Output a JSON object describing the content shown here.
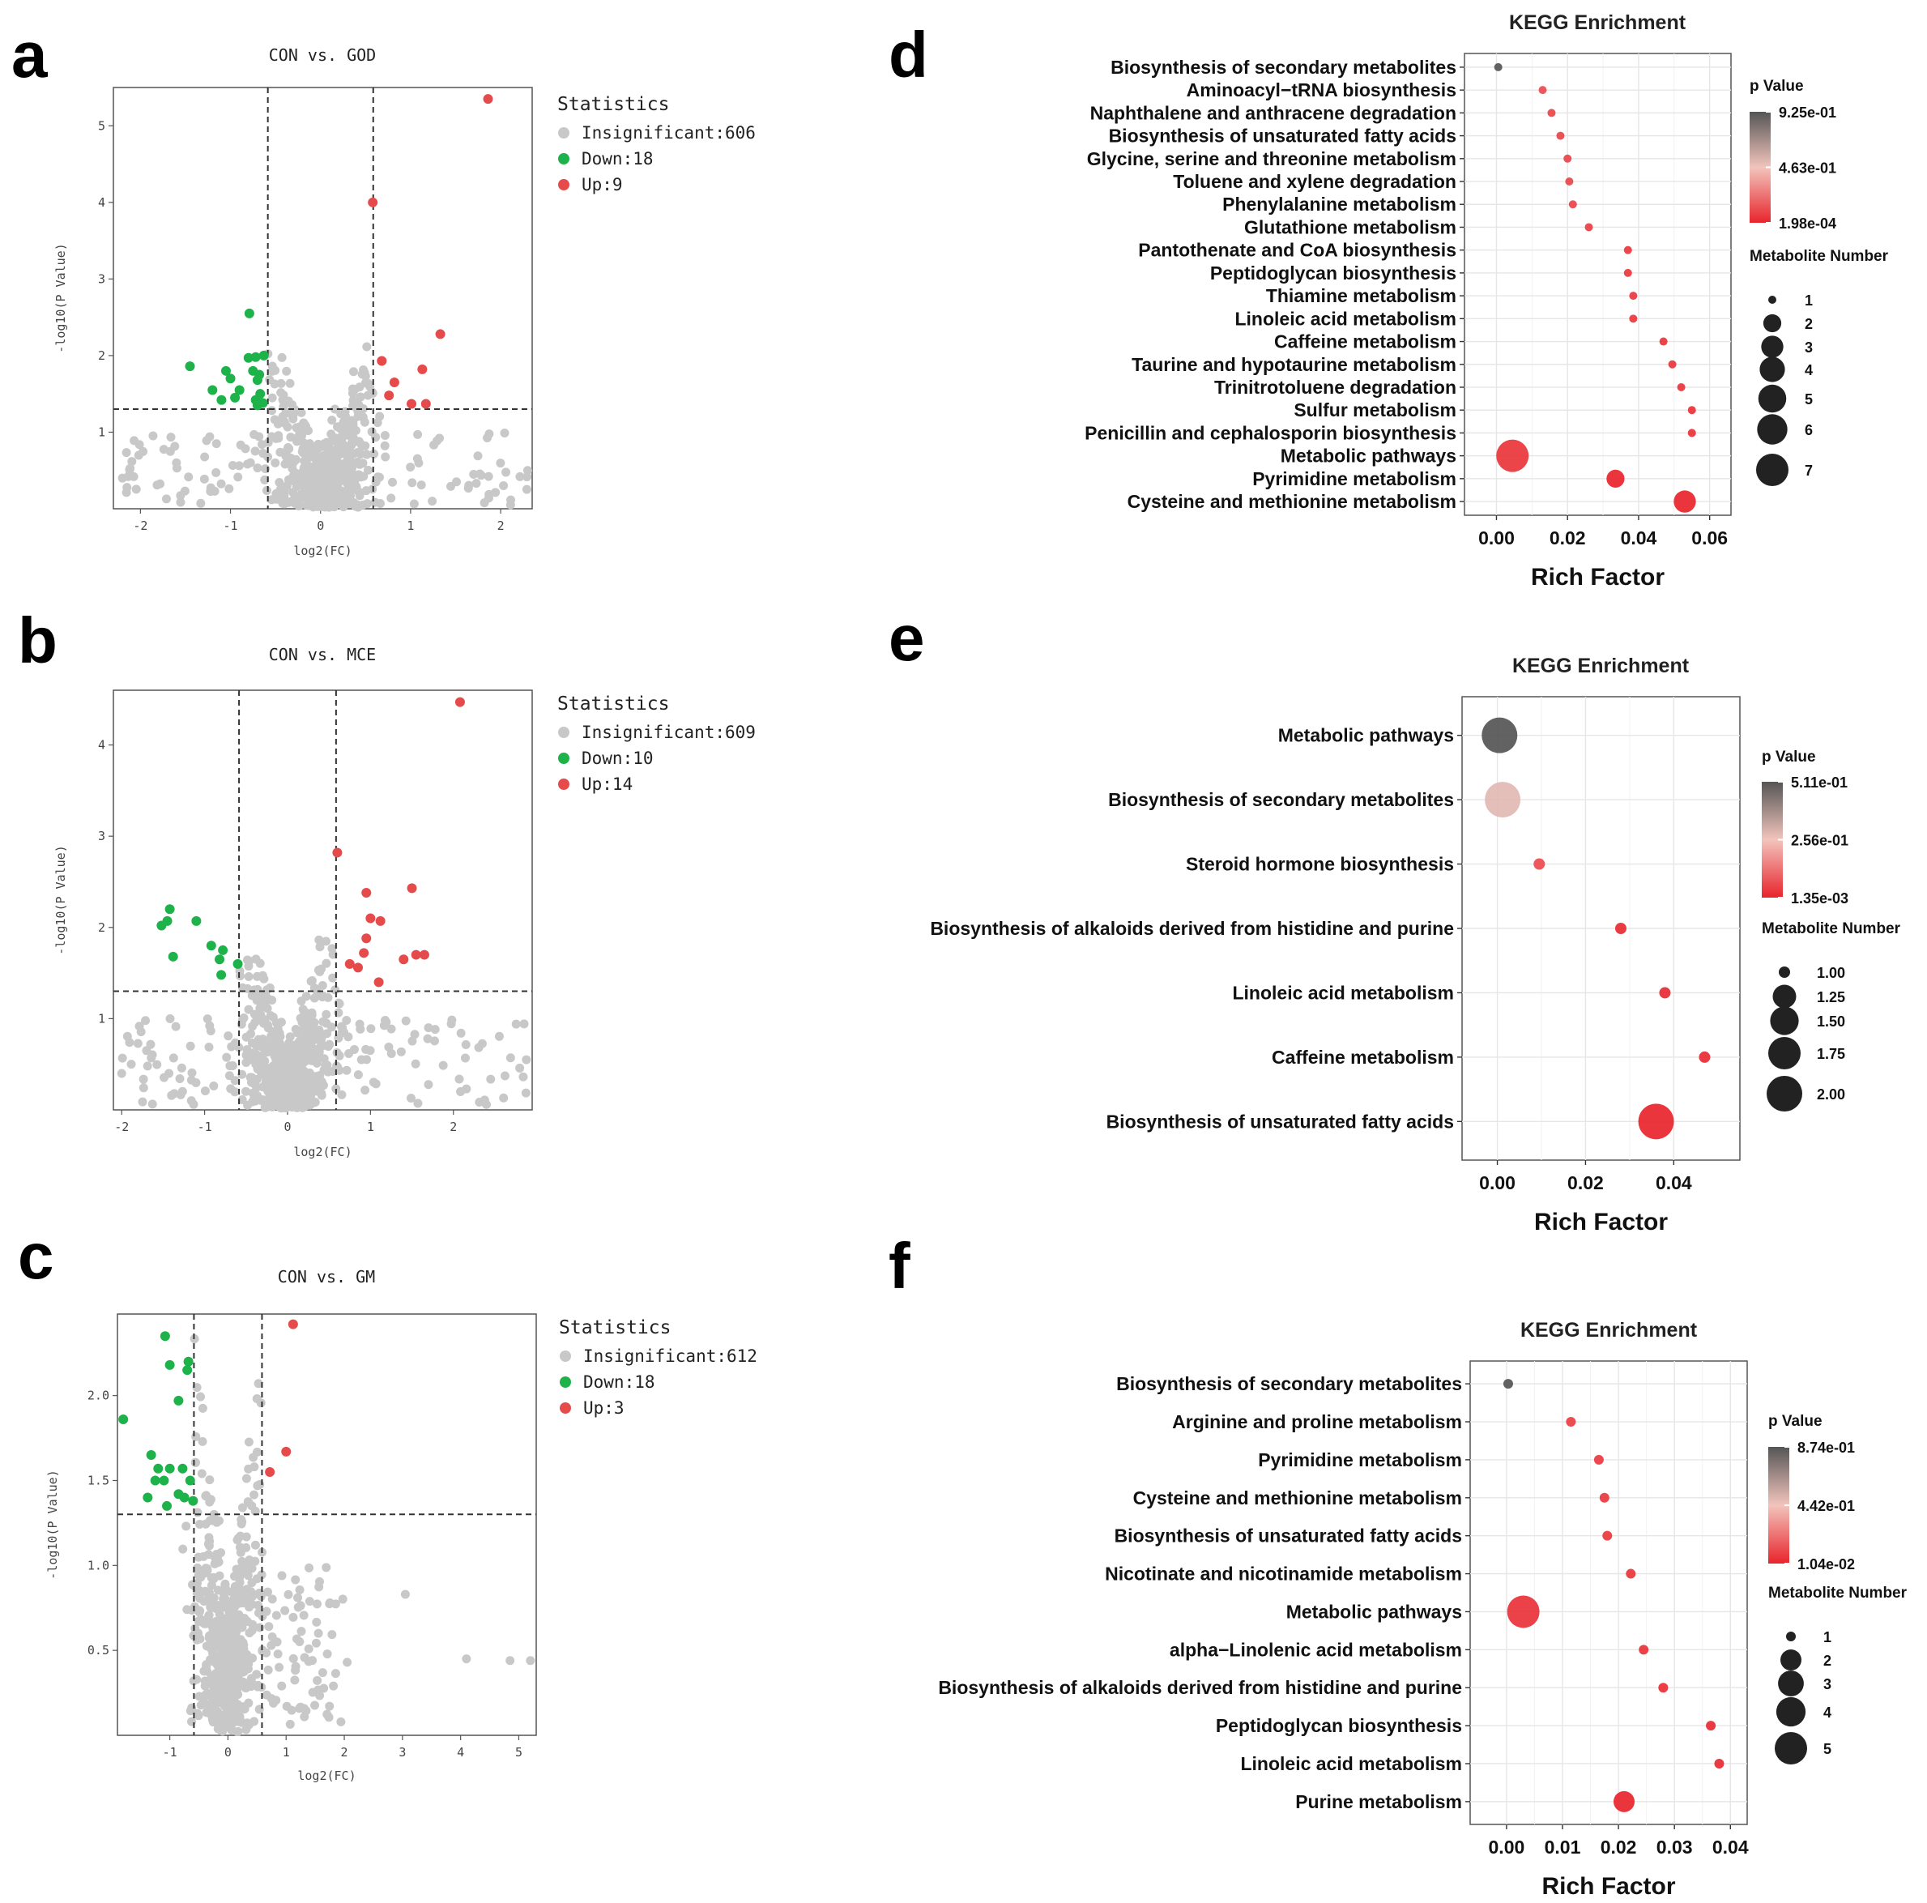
{
  "colors": {
    "insignificant": "#c8c8c8",
    "down": "#1db24a",
    "up": "#e64b4b",
    "grad_top": "#555555",
    "grad_mid": "#f2c4bc",
    "grad_bottom": "#e8242c"
  },
  "panels": [
    "a",
    "b",
    "c",
    "d",
    "e",
    "f"
  ],
  "chart_data": [
    {
      "type": "scatter",
      "panel": "a",
      "title": "CON vs. GOD",
      "xlabel": "log2(FC)",
      "ylabel": "-log10(P Value)",
      "xlim": [
        -2.3,
        2.35
      ],
      "ylim": [
        0,
        5.5
      ],
      "xticks": [
        -2,
        -1,
        0,
        1,
        2
      ],
      "yticks": [
        1,
        2,
        3,
        4,
        5
      ],
      "thresholds": {
        "x": [
          -0.585,
          0.585
        ],
        "y": 1.301
      },
      "legend_title": "Statistics",
      "legend": [
        {
          "label": "Insignificant:606",
          "key": "insignificant"
        },
        {
          "label": "Down:18",
          "key": "down"
        },
        {
          "label": "Up:9",
          "key": "up"
        }
      ],
      "up_points": [
        [
          1.86,
          5.35
        ],
        [
          0.58,
          4.0
        ],
        [
          1.33,
          2.28
        ],
        [
          0.68,
          1.93
        ],
        [
          1.13,
          1.82
        ],
        [
          0.82,
          1.65
        ],
        [
          0.76,
          1.48
        ],
        [
          1.01,
          1.37
        ],
        [
          1.17,
          1.37
        ]
      ],
      "down_points": [
        [
          -0.79,
          2.55
        ],
        [
          -1.45,
          1.86
        ],
        [
          -0.8,
          1.97
        ],
        [
          -0.63,
          2.0
        ],
        [
          -0.72,
          1.98
        ],
        [
          -1.05,
          1.8
        ],
        [
          -0.75,
          1.8
        ],
        [
          -0.68,
          1.75
        ],
        [
          -1.0,
          1.7
        ],
        [
          -0.7,
          1.68
        ],
        [
          -1.2,
          1.55
        ],
        [
          -0.9,
          1.55
        ],
        [
          -0.67,
          1.5
        ],
        [
          -1.1,
          1.42
        ],
        [
          -0.95,
          1.45
        ],
        [
          -0.72,
          1.42
        ],
        [
          -0.64,
          1.38
        ],
        [
          -0.7,
          1.35
        ]
      ],
      "insignificant_count": 606,
      "insignificant_spread": {
        "x": [
          -2.2,
          2.3
        ],
        "ymax": 2.1,
        "outliers": [
          [
            -2.2,
            0.4
          ],
          [
            2.3,
            0.5
          ],
          [
            -1.6,
            0.6
          ],
          [
            1.7,
            0.45
          ]
        ]
      }
    },
    {
      "type": "scatter",
      "panel": "b",
      "title": "CON vs. MCE",
      "xlabel": "log2(FC)",
      "ylabel": "-log10(P Value)",
      "xlim": [
        -2.1,
        2.95
      ],
      "ylim": [
        0,
        4.6
      ],
      "xticks": [
        -2,
        -1,
        0,
        1,
        2
      ],
      "yticks": [
        1,
        2,
        3,
        4
      ],
      "thresholds": {
        "x": [
          -0.585,
          0.585
        ],
        "y": 1.301
      },
      "legend_title": "Statistics",
      "legend": [
        {
          "label": "Insignificant:609",
          "key": "insignificant"
        },
        {
          "label": "Down:10",
          "key": "down"
        },
        {
          "label": "Up:14",
          "key": "up"
        }
      ],
      "up_points": [
        [
          2.08,
          4.47
        ],
        [
          0.6,
          2.82
        ],
        [
          0.95,
          2.38
        ],
        [
          1.5,
          2.43
        ],
        [
          1.0,
          2.1
        ],
        [
          1.12,
          2.07
        ],
        [
          0.95,
          1.88
        ],
        [
          0.92,
          1.72
        ],
        [
          1.55,
          1.7
        ],
        [
          1.65,
          1.7
        ],
        [
          1.4,
          1.65
        ],
        [
          0.75,
          1.6
        ],
        [
          0.85,
          1.56
        ],
        [
          1.1,
          1.4
        ]
      ],
      "down_points": [
        [
          -1.42,
          2.2
        ],
        [
          -1.45,
          2.07
        ],
        [
          -1.52,
          2.02
        ],
        [
          -1.1,
          2.07
        ],
        [
          -0.92,
          1.8
        ],
        [
          -0.78,
          1.75
        ],
        [
          -1.38,
          1.68
        ],
        [
          -0.82,
          1.65
        ],
        [
          -0.6,
          1.6
        ],
        [
          -0.8,
          1.48
        ]
      ],
      "insignificant_count": 609,
      "insignificant_spread": {
        "x": [
          -2.0,
          2.9
        ],
        "ymax": 1.95,
        "outliers": [
          [
            -2.0,
            0.4
          ],
          [
            2.88,
            0.55
          ],
          [
            1.7,
            0.9
          ],
          [
            -1.7,
            0.65
          ]
        ]
      }
    },
    {
      "type": "scatter",
      "panel": "c",
      "title": "CON vs. GM",
      "xlabel": "log2(FC)",
      "ylabel": "-log10(P Value)",
      "xlim": [
        -1.9,
        5.3
      ],
      "ylim": [
        0,
        2.48
      ],
      "xticks": [
        -1,
        0,
        1,
        2,
        3,
        4,
        5
      ],
      "yticks": [
        0.5,
        1.0,
        1.5,
        2.0
      ],
      "thresholds": {
        "x": [
          -0.585,
          0.585
        ],
        "y": 1.301
      },
      "legend_title": "Statistics",
      "legend": [
        {
          "label": "Insignificant:612",
          "key": "insignificant"
        },
        {
          "label": "Down:18",
          "key": "down"
        },
        {
          "label": "Up:3",
          "key": "up"
        }
      ],
      "up_points": [
        [
          1.12,
          2.42
        ],
        [
          1.0,
          1.67
        ],
        [
          0.72,
          1.55
        ]
      ],
      "down_points": [
        [
          -1.08,
          2.35
        ],
        [
          -1.0,
          2.18
        ],
        [
          -0.68,
          2.2
        ],
        [
          -0.7,
          2.15
        ],
        [
          -0.85,
          1.97
        ],
        [
          -1.8,
          1.86
        ],
        [
          -1.32,
          1.65
        ],
        [
          -1.2,
          1.57
        ],
        [
          -1.0,
          1.57
        ],
        [
          -0.78,
          1.57
        ],
        [
          -1.25,
          1.5
        ],
        [
          -1.1,
          1.5
        ],
        [
          -0.65,
          1.5
        ],
        [
          -0.85,
          1.42
        ],
        [
          -0.75,
          1.4
        ],
        [
          -1.38,
          1.4
        ],
        [
          -0.6,
          1.38
        ],
        [
          -1.05,
          1.35
        ]
      ],
      "insignificant_count": 612,
      "insignificant_spread": {
        "x": [
          -1.8,
          5.2
        ],
        "ymax": 2.45,
        "outliers": [
          [
            3.05,
            0.83
          ],
          [
            4.1,
            0.45
          ],
          [
            4.85,
            0.44
          ],
          [
            5.2,
            0.44
          ],
          [
            2.05,
            0.43
          ]
        ]
      }
    },
    {
      "type": "scatter",
      "subtype": "bubble",
      "panel": "d",
      "title": "KEGG Enrichment",
      "xlabel": "Rich Factor",
      "xlim": [
        -0.009,
        0.066
      ],
      "xticks": [
        "0.00",
        "0.02",
        "0.04",
        "0.06"
      ],
      "legend_color_title": "p Value",
      "legend_color_labels": [
        "9.25e-01",
        "4.63e-01",
        "1.98e-04"
      ],
      "legend_size_title": "Metabolite Number",
      "legend_size_labels": [
        "1",
        "2",
        "3",
        "4",
        "5",
        "6",
        "7"
      ],
      "size_max": 7,
      "categories": [
        "Biosynthesis of secondary metabolites",
        "Aminoacyl−tRNA biosynthesis",
        "Naphthalene and anthracene degradation",
        "Biosynthesis of unsaturated fatty acids",
        "Glycine, serine and threonine metabolism",
        "Toluene and xylene degradation",
        "Phenylalanine metabolism",
        "Glutathione metabolism",
        "Pantothenate and CoA biosynthesis",
        "Peptidoglycan biosynthesis",
        "Thiamine metabolism",
        "Linoleic acid metabolism",
        "Caffeine metabolism",
        "Taurine and hypotaurine metabolism",
        "Trinitrotoluene degradation",
        "Sulfur metabolism",
        "Penicillin and cephalosporin biosynthesis",
        "Metabolic pathways",
        "Pyrimidine metabolism",
        "Cysteine and methionine metabolism"
      ],
      "x": [
        0.0005,
        0.013,
        0.0155,
        0.018,
        0.02,
        0.0205,
        0.0215,
        0.026,
        0.037,
        0.037,
        0.0385,
        0.0385,
        0.047,
        0.0495,
        0.052,
        0.055,
        0.055,
        0.0045,
        0.0335,
        0.053
      ],
      "size": [
        1,
        1,
        1,
        1,
        1,
        1,
        1,
        1,
        1,
        1,
        1,
        1,
        1,
        1,
        1,
        1,
        1,
        7,
        2,
        3
      ],
      "color_t": [
        1.0,
        0.12,
        0.1,
        0.1,
        0.1,
        0.1,
        0.1,
        0.08,
        0.06,
        0.06,
        0.06,
        0.06,
        0.05,
        0.05,
        0.05,
        0.04,
        0.04,
        0.05,
        0.0,
        0.0
      ]
    },
    {
      "type": "scatter",
      "subtype": "bubble",
      "panel": "e",
      "title": "KEGG Enrichment",
      "xlabel": "Rich Factor",
      "xlim": [
        -0.008,
        0.055
      ],
      "xticks": [
        "0.00",
        "0.02",
        "0.04"
      ],
      "legend_color_title": "p Value",
      "legend_color_labels": [
        "5.11e-01",
        "2.56e-01",
        "1.35e-03"
      ],
      "legend_size_title": "Metabolite Number",
      "legend_size_labels": [
        "1.00",
        "1.25",
        "1.50",
        "1.75",
        "2.00"
      ],
      "size_max": 2,
      "categories": [
        "Metabolic pathways",
        "Biosynthesis of secondary metabolites",
        "Steroid hormone biosynthesis",
        "Biosynthesis of alkaloids derived from histidine and purine",
        "Linoleic acid metabolism",
        "Caffeine metabolism",
        "Biosynthesis of unsaturated fatty acids"
      ],
      "x": [
        0.0005,
        0.0012,
        0.0095,
        0.028,
        0.038,
        0.047,
        0.036
      ],
      "size": [
        2,
        2,
        1,
        1,
        1,
        1,
        2
      ],
      "color_t": [
        1.0,
        0.55,
        0.12,
        0.02,
        0.02,
        0.02,
        0.0
      ]
    },
    {
      "type": "scatter",
      "subtype": "bubble",
      "panel": "f",
      "title": "KEGG Enrichment",
      "xlabel": "Rich Factor",
      "xlim": [
        -0.0065,
        0.043
      ],
      "xticks": [
        "0.00",
        "0.01",
        "0.02",
        "0.03",
        "0.04"
      ],
      "legend_color_title": "p Value",
      "legend_color_labels": [
        "8.74e-01",
        "4.42e-01",
        "1.04e-02"
      ],
      "legend_size_title": "Metabolite Number",
      "legend_size_labels": [
        "1",
        "2",
        "3",
        "4",
        "5"
      ],
      "size_max": 5,
      "categories": [
        "Biosynthesis of secondary metabolites",
        "Arginine and proline metabolism",
        "Pyrimidine metabolism",
        "Cysteine and methionine metabolism",
        "Biosynthesis of unsaturated fatty acids",
        "Nicotinate and nicotinamide metabolism",
        "Metabolic pathways",
        "alpha−Linolenic acid metabolism",
        "Biosynthesis of alkaloids derived from histidine and purine",
        "Peptidoglycan biosynthesis",
        "Linoleic acid metabolism",
        "Purine metabolism"
      ],
      "x": [
        0.0003,
        0.0115,
        0.0165,
        0.0175,
        0.018,
        0.0222,
        0.003,
        0.0245,
        0.028,
        0.0365,
        0.038,
        0.021
      ],
      "size": [
        1,
        1,
        1,
        1,
        1,
        1,
        5,
        1,
        1,
        1,
        1,
        2
      ],
      "color_t": [
        1.0,
        0.08,
        0.07,
        0.06,
        0.06,
        0.05,
        0.04,
        0.04,
        0.03,
        0.02,
        0.02,
        0.0
      ]
    }
  ]
}
